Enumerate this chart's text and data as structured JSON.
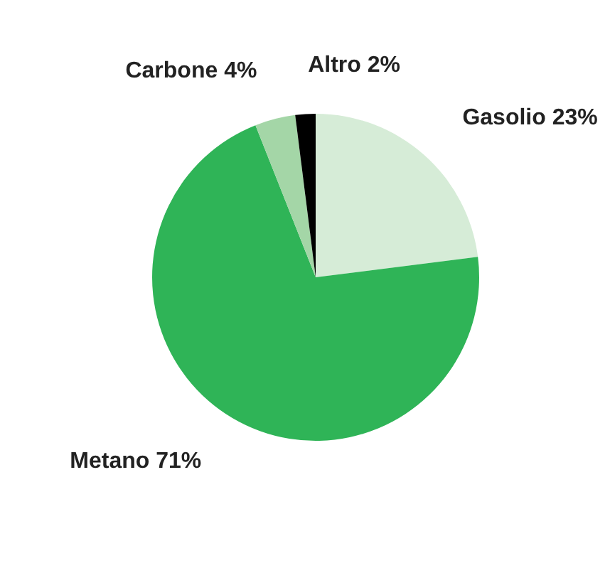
{
  "chart_data": {
    "type": "pie",
    "categories": [
      "Gasolio",
      "Metano",
      "Carbone",
      "Altro"
    ],
    "values": [
      23,
      71,
      4,
      2
    ],
    "value_labels": [
      "23%",
      "71%",
      "4%",
      "2%"
    ],
    "colors": [
      "#d6ecd7",
      "#2fb457",
      "#a4d6a7",
      "#000000"
    ]
  }
}
